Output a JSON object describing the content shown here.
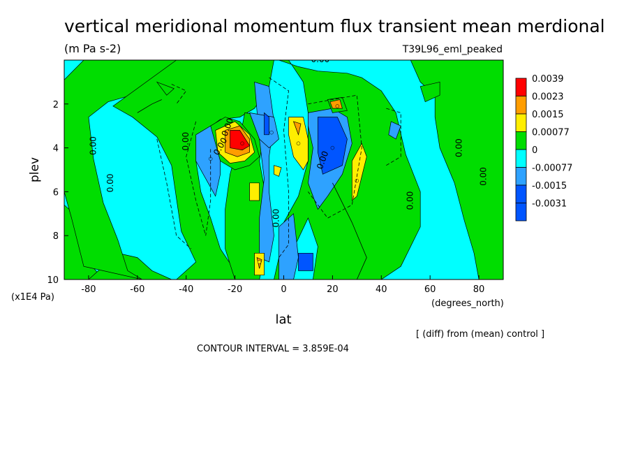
{
  "chart_data": {
    "type": "heatmap",
    "title": "vertical meridional momentum flux transient mean merdional",
    "units": "(m Pa s-2)",
    "dataset_label": "T39L96_eml_peaked",
    "xlabel": "lat",
    "x_units": "(degrees_north)",
    "ylabel": "plev",
    "y_units": "(x1E4 Pa)",
    "xlim": [
      -90,
      90
    ],
    "ylim": [
      10,
      0
    ],
    "x_ticks": [
      -80,
      -60,
      -40,
      -20,
      0,
      20,
      40,
      60,
      80
    ],
    "y_ticks": [
      2,
      4,
      6,
      8,
      10
    ],
    "contour_interval_text": "CONTOUR INTERVAL = 3.859E-04",
    "footnote": "[ (diff) from (mean) control ]",
    "contour_label": "0.00",
    "legend": [
      {
        "label": "0.0039",
        "color": "#ff0000"
      },
      {
        "label": "0.0023",
        "color": "#ff9d00"
      },
      {
        "label": "0.0015",
        "color": "#ffee00"
      },
      {
        "label": "0.00077",
        "color": "#00dd00"
      },
      {
        "label": "0",
        "color": "#00ffff"
      },
      {
        "label": "-0.00077",
        "color": "#2ea2ff"
      },
      {
        "label": "-0.0015",
        "color": "#0055ff"
      },
      {
        "label": "-0.0031",
        "color": "#0055ff"
      }
    ],
    "features": [
      {
        "name": "sh-positive-max",
        "lat": -17,
        "plev": 3.8,
        "level": 4,
        "color": "#ff0000"
      },
      {
        "name": "sh-negative-lobe",
        "lat": -30,
        "plev": 4.5,
        "level": -2,
        "color": "#2ea2ff"
      },
      {
        "name": "eq-positive-north",
        "lat": 6,
        "plev": 3.8,
        "level": 2,
        "color": "#ffee00"
      },
      {
        "name": "eq-negative-south",
        "lat": -5,
        "plev": 3.3,
        "level": -2,
        "color": "#2ea2ff"
      },
      {
        "name": "nh-negative-max",
        "lat": 20,
        "plev": 4.0,
        "level": -3,
        "color": "#0055ff"
      },
      {
        "name": "nh-positive-upper",
        "lat": 22,
        "plev": 2.1,
        "level": 3,
        "color": "#ff9d00"
      },
      {
        "name": "nh-positive-strip",
        "lat": 30,
        "plev": 5.5,
        "level": 2,
        "color": "#ffee00"
      },
      {
        "name": "surface-positive",
        "lat": -10,
        "plev": 9.2,
        "level": 2,
        "color": "#ffee00"
      }
    ]
  }
}
